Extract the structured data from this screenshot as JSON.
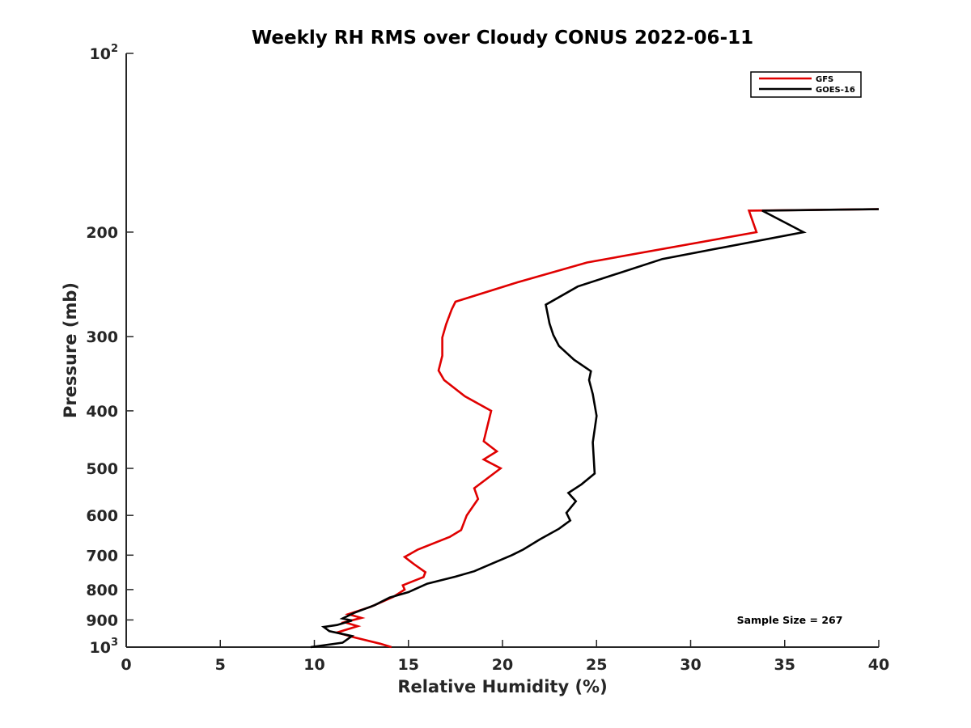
{
  "chart_data": {
    "type": "line",
    "title": "Weekly RH RMS over Cloudy CONUS 2022-06-11",
    "xlabel": "Relative Humidity (%)",
    "ylabel": "Pressure (mb)",
    "xlim": [
      0,
      40
    ],
    "ylim": [
      1000,
      100
    ],
    "y_scale": "log",
    "y_axis_reversed": true,
    "x_ticks": [
      0,
      5,
      10,
      15,
      20,
      25,
      30,
      35,
      40
    ],
    "y_ticks": [
      {
        "value": 100,
        "base": "10",
        "exp": "2"
      },
      {
        "value": 200,
        "label": "200"
      },
      {
        "value": 300,
        "label": "300"
      },
      {
        "value": 400,
        "label": "400"
      },
      {
        "value": 500,
        "label": "500"
      },
      {
        "value": 600,
        "label": "600"
      },
      {
        "value": 700,
        "label": "700"
      },
      {
        "value": 800,
        "label": "800"
      },
      {
        "value": 900,
        "label": "900"
      },
      {
        "value": 1000,
        "base": "10",
        "exp": "3"
      }
    ],
    "grid": false,
    "legend_position": "top-right",
    "series": [
      {
        "name": "GFS",
        "color": "#e00000",
        "points": [
          [
            14.1,
            1000
          ],
          [
            13.5,
            987
          ],
          [
            12.0,
            961
          ],
          [
            11.2,
            945
          ],
          [
            12.3,
            922
          ],
          [
            11.6,
            908
          ],
          [
            12.5,
            893
          ],
          [
            11.8,
            880
          ],
          [
            13.0,
            855
          ],
          [
            14.2,
            823
          ],
          [
            14.8,
            800
          ],
          [
            14.7,
            787
          ],
          [
            15.8,
            762
          ],
          [
            15.9,
            748
          ],
          [
            15.3,
            725
          ],
          [
            14.8,
            705
          ],
          [
            15.5,
            685
          ],
          [
            17.2,
            652
          ],
          [
            17.8,
            635
          ],
          [
            18.1,
            600
          ],
          [
            18.7,
            563
          ],
          [
            18.5,
            540
          ],
          [
            19.9,
            500
          ],
          [
            19.0,
            483
          ],
          [
            19.7,
            468
          ],
          [
            19.0,
            450
          ],
          [
            19.4,
            400
          ],
          [
            18.0,
            378
          ],
          [
            16.9,
            355
          ],
          [
            16.6,
            342
          ],
          [
            16.8,
            323
          ],
          [
            16.8,
            301
          ],
          [
            17.0,
            286
          ],
          [
            17.3,
            270
          ],
          [
            17.5,
            262
          ],
          [
            20.8,
            243
          ],
          [
            24.5,
            225
          ],
          [
            33.5,
            200
          ],
          [
            33.1,
            184
          ],
          [
            40.0,
            183
          ]
        ]
      },
      {
        "name": "GOES-16",
        "color": "#000000",
        "points": [
          [
            9.8,
            1000
          ],
          [
            11.5,
            983
          ],
          [
            12.0,
            958
          ],
          [
            10.8,
            940
          ],
          [
            10.5,
            925
          ],
          [
            11.2,
            918
          ],
          [
            12.0,
            902
          ],
          [
            11.5,
            895
          ],
          [
            12.1,
            876
          ],
          [
            13.2,
            850
          ],
          [
            14.0,
            825
          ],
          [
            15.0,
            808
          ],
          [
            16.0,
            782
          ],
          [
            17.5,
            761
          ],
          [
            18.5,
            745
          ],
          [
            19.5,
            722
          ],
          [
            20.5,
            700
          ],
          [
            21.1,
            685
          ],
          [
            22.0,
            658
          ],
          [
            23.0,
            632
          ],
          [
            23.6,
            612
          ],
          [
            23.4,
            594
          ],
          [
            23.9,
            568
          ],
          [
            23.5,
            550
          ],
          [
            24.2,
            532
          ],
          [
            24.9,
            510
          ],
          [
            24.8,
            452
          ],
          [
            25.0,
            408
          ],
          [
            24.8,
            375
          ],
          [
            24.6,
            355
          ],
          [
            24.7,
            343
          ],
          [
            23.8,
            328
          ],
          [
            23.0,
            311
          ],
          [
            22.7,
            298
          ],
          [
            22.5,
            285
          ],
          [
            22.3,
            265
          ],
          [
            24.0,
            247
          ],
          [
            28.5,
            222
          ],
          [
            36.0,
            200
          ],
          [
            33.8,
            184
          ],
          [
            40.0,
            183
          ]
        ]
      }
    ],
    "annotation": "Sample Size = 267"
  }
}
